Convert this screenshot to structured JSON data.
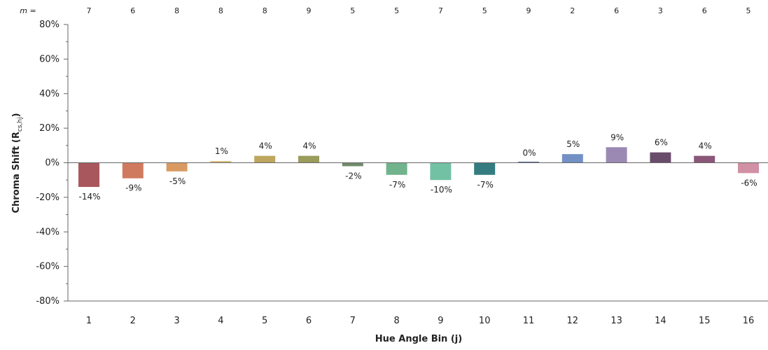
{
  "chart_data": {
    "type": "bar",
    "x_label": "Hue Angle Bin (j)",
    "y_label": "Chroma Shift (R",
    "y_label_sub": "cs,hj",
    "y_label_close": ")",
    "m_prefix": "m =",
    "ylim": [
      -80,
      80
    ],
    "y_ticks": [
      80,
      60,
      40,
      20,
      0,
      -20,
      -40,
      -60,
      -80
    ],
    "y_tick_labels": [
      "80%",
      "60%",
      "40%",
      "20%",
      "0%",
      "-20%",
      "-40%",
      "-60%",
      "-80%"
    ],
    "grid": false,
    "categories": [
      "1",
      "2",
      "3",
      "4",
      "5",
      "6",
      "7",
      "8",
      "9",
      "10",
      "11",
      "12",
      "13",
      "14",
      "15",
      "16"
    ],
    "values": [
      -14,
      -9,
      -5,
      1,
      4,
      4,
      -2,
      -7,
      -10,
      -7,
      0,
      5,
      9,
      6,
      4,
      -6
    ],
    "value_labels": [
      "-14%",
      "-9%",
      "-5%",
      "1%",
      "4%",
      "4%",
      "-2%",
      "-7%",
      "-10%",
      "-7%",
      "0%",
      "5%",
      "9%",
      "6%",
      "4%",
      "-6%"
    ],
    "m_values": [
      "7",
      "6",
      "8",
      "8",
      "8",
      "9",
      "5",
      "5",
      "7",
      "5",
      "9",
      "2",
      "6",
      "3",
      "6",
      "5"
    ],
    "colors": [
      "#A8585C",
      "#CF7A5E",
      "#D99A62",
      "#D7BE7E",
      "#BEA65E",
      "#9A9C5C",
      "#6F8A6A",
      "#71B38C",
      "#73C1A4",
      "#357C80",
      "#5E6F90",
      "#7290C4",
      "#9B89B4",
      "#684C6A",
      "#8A5779",
      "#D190A4"
    ]
  }
}
